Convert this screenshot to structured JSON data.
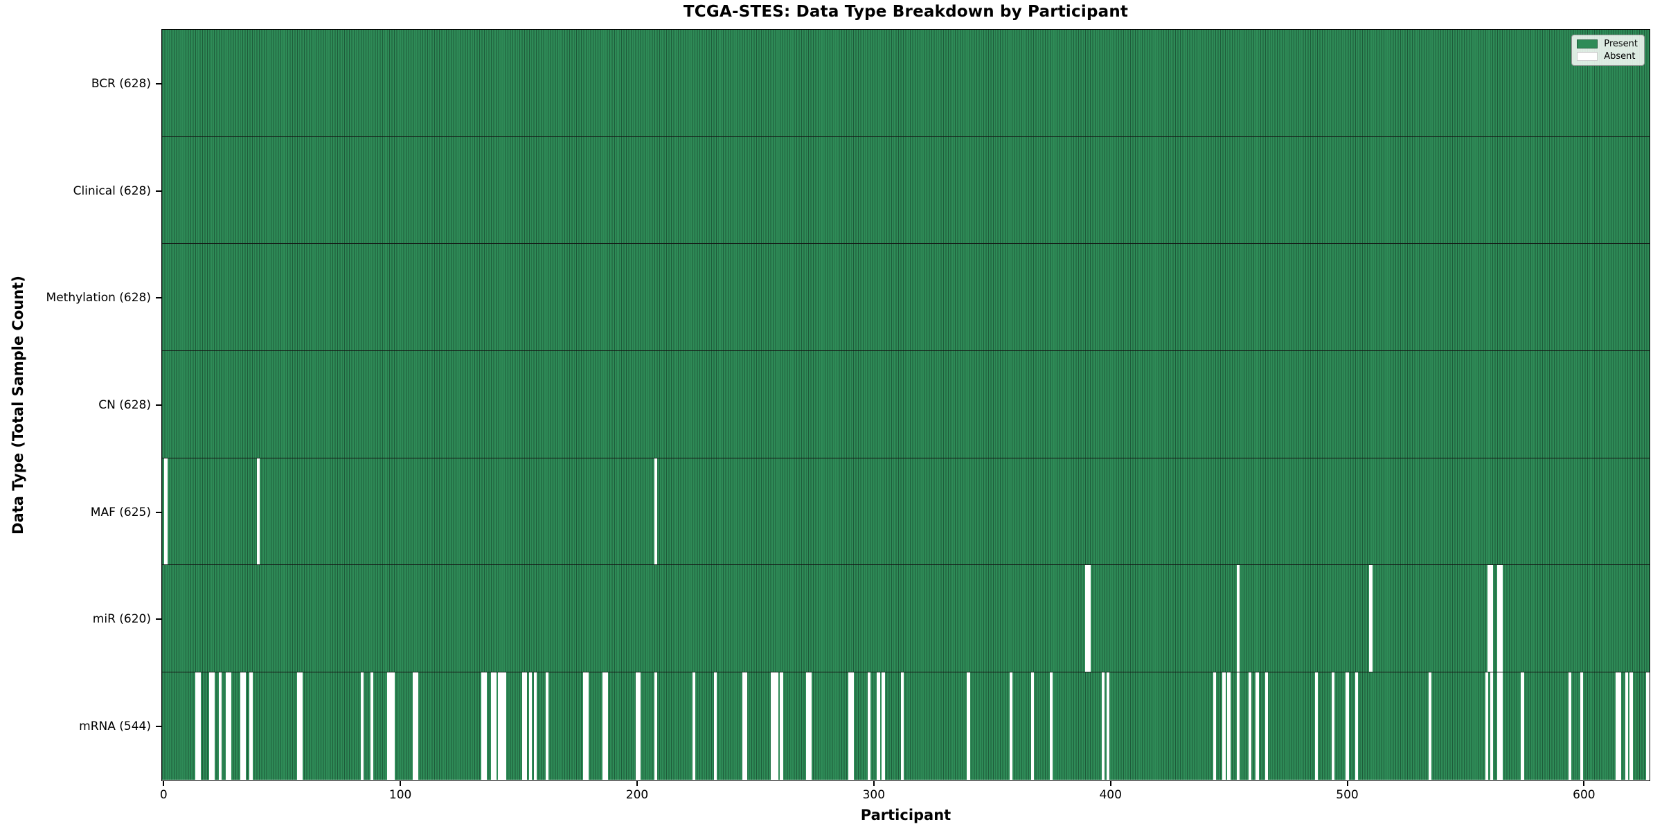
{
  "figure": {
    "title": "TCGA-STES: Data Type Breakdown by Participant",
    "xlabel": "Participant",
    "ylabel": "Data Type (Total Sample Count)"
  },
  "legend": {
    "present_label": "Present",
    "absent_label": "Absent"
  },
  "chart_data": {
    "type": "heatmap",
    "subtype": "presence-absence-matrix",
    "title": "TCGA-STES: Data Type Breakdown by Participant",
    "xlabel": "Participant",
    "ylabel": "Data Type (Total Sample Count)",
    "n_participants": 628,
    "xlim": [
      -0.5,
      627.5
    ],
    "x_ticks": [
      0,
      100,
      200,
      300,
      400,
      500,
      600
    ],
    "grid": false,
    "legend_entries": [
      "Present",
      "Absent"
    ],
    "legend_position": "upper right",
    "colors": {
      "present": "#2e8b57",
      "present_edge": "#1e5b3a",
      "absent": "#ffffff",
      "axis": "#000000"
    },
    "rows": [
      {
        "data_type": "BCR",
        "label": "BCR (628)",
        "present_count": 628,
        "absent_participants": []
      },
      {
        "data_type": "Clinical",
        "label": "Clinical (628)",
        "present_count": 628,
        "absent_participants": []
      },
      {
        "data_type": "Methylation",
        "label": "Methylation (628)",
        "present_count": 628,
        "absent_participants": []
      },
      {
        "data_type": "CN",
        "label": "CN (628)",
        "present_count": 628,
        "absent_participants": []
      },
      {
        "data_type": "MAF",
        "label": "MAF (625)",
        "present_count": 625,
        "absent_participants": [
          1,
          40,
          208
        ]
      },
      {
        "data_type": "miR",
        "label": "miR (620)",
        "present_count": 620,
        "absent_participants": [
          390,
          391,
          454,
          510,
          560,
          561,
          564,
          565
        ]
      },
      {
        "data_type": "mRNA",
        "label": "mRNA (544)",
        "present_count": 544,
        "absent_participants": [
          14,
          15,
          20,
          21,
          24,
          27,
          28,
          33,
          34,
          37,
          57,
          58,
          84,
          88,
          95,
          96,
          97,
          106,
          107,
          135,
          136,
          139,
          140,
          142,
          143,
          144,
          152,
          153,
          155,
          157,
          162,
          178,
          179,
          186,
          187,
          200,
          201,
          208,
          224,
          233,
          245,
          246,
          257,
          258,
          259,
          261,
          272,
          273,
          290,
          291,
          298,
          302,
          304,
          312,
          340,
          358,
          367,
          375,
          397,
          399,
          444,
          448,
          450,
          454,
          459,
          462,
          466,
          487,
          494,
          500,
          504,
          535,
          559,
          561,
          564,
          565,
          574,
          594,
          599,
          614,
          615,
          618,
          620,
          627
        ]
      }
    ]
  }
}
